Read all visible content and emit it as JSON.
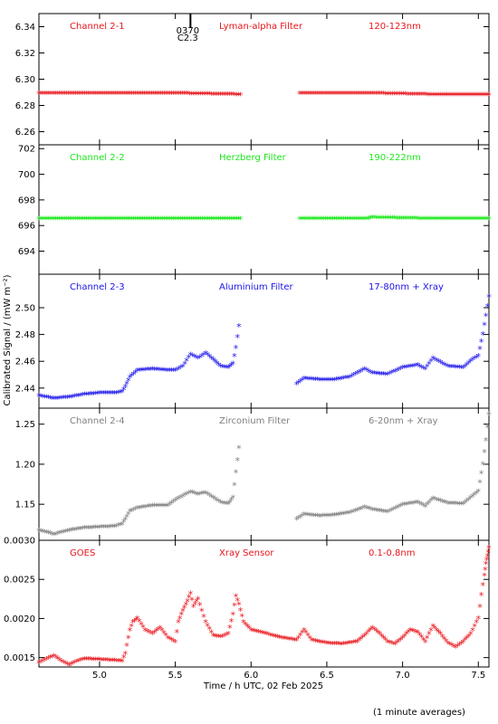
{
  "chart_data": {
    "type": "scatter",
    "xlabel": "Time / h UTC, 02 Feb 2025",
    "ylabel": "Calibrated Signal / (mW m⁻²)",
    "xlim": [
      4.6,
      7.57
    ],
    "xticks": [
      5.0,
      5.5,
      6.0,
      6.5,
      7.0,
      7.5
    ],
    "xtick_labels": [
      "5.0",
      "5.5",
      "6.0",
      "6.5",
      "7.0",
      "7.5"
    ],
    "marker": "asterisk",
    "data_gap": [
      5.93,
      6.32
    ],
    "flare_marker": {
      "x": 5.6,
      "label_top": "0370",
      "label_bottom": "C2.3"
    },
    "footnote": "(1 minute averages)",
    "panels": [
      {
        "channel": "Channel 2-1",
        "filter": "Lyman-alpha Filter",
        "band": "120-123nm",
        "color": "#e8141b",
        "ylim": [
          6.25,
          6.35
        ],
        "yticks": [
          "6.26",
          "6.28",
          "6.30",
          "6.32",
          "6.34"
        ],
        "series": [
          {
            "x": [
              4.6,
              5.0,
              5.5,
              5.93
            ],
            "y": [
              6.289,
              6.289,
              6.289,
              6.288
            ]
          },
          {
            "x": [
              6.32,
              6.8,
              7.2,
              7.57
            ],
            "y": [
              6.289,
              6.289,
              6.288,
              6.288
            ]
          }
        ]
      },
      {
        "channel": "Channel 2-2",
        "filter": "Herzberg Filter",
        "band": "190-222nm",
        "color": "#1be81b",
        "ylim": [
          692.2,
          702.3
        ],
        "yticks": [
          "694",
          "696",
          "698",
          "700",
          "702"
        ],
        "series": [
          {
            "x": [
              4.6,
              5.0,
              5.5,
              5.93
            ],
            "y": [
              696.5,
              696.5,
              696.5,
              696.5
            ]
          },
          {
            "x": [
              6.32,
              6.77,
              6.8,
              7.2,
              7.57
            ],
            "y": [
              696.5,
              696.5,
              696.6,
              696.5,
              696.5
            ]
          }
        ]
      },
      {
        "channel": "Channel 2-3",
        "filter": "Aluminium Filter",
        "band": "17-80nm + Xray",
        "color": "#1b14e8",
        "ylim": [
          2.425,
          2.525
        ],
        "yticks": [
          "2.44",
          "2.46",
          "2.48",
          "2.50"
        ],
        "series": [
          {
            "x": [
              4.6,
              4.7,
              4.8,
              4.9,
              5.0,
              5.1,
              5.15,
              5.17,
              5.2,
              5.25,
              5.35,
              5.45,
              5.5,
              5.55,
              5.6,
              5.65,
              5.7,
              5.8,
              5.85,
              5.88,
              5.9,
              5.92
            ],
            "y": [
              2.434,
              2.432,
              2.433,
              2.435,
              2.436,
              2.436,
              2.437,
              2.441,
              2.448,
              2.453,
              2.454,
              2.453,
              2.453,
              2.456,
              2.465,
              2.462,
              2.466,
              2.456,
              2.455,
              2.458,
              2.47,
              2.486
            ]
          },
          {
            "x": [
              6.3,
              6.35,
              6.45,
              6.55,
              6.65,
              6.75,
              6.8,
              6.9,
              7.0,
              7.1,
              7.15,
              7.2,
              7.3,
              7.4,
              7.45,
              7.5,
              7.53,
              7.55,
              7.57
            ],
            "y": [
              2.443,
              2.447,
              2.446,
              2.446,
              2.448,
              2.454,
              2.451,
              2.45,
              2.455,
              2.457,
              2.454,
              2.462,
              2.456,
              2.455,
              2.46,
              2.464,
              2.48,
              2.494,
              2.508
            ]
          }
        ]
      },
      {
        "channel": "Channel 2-4",
        "filter": "Zirconium Filter",
        "band": "6-20nm + Xray",
        "color": "#808080",
        "ylim": [
          1.105,
          1.27
        ],
        "yticks": [
          "1.15",
          "1.20",
          "1.25"
        ],
        "series": [
          {
            "x": [
              4.6,
              4.7,
              4.8,
              4.9,
              5.0,
              5.1,
              5.15,
              5.17,
              5.2,
              5.25,
              5.35,
              5.45,
              5.5,
              5.55,
              5.6,
              5.65,
              5.7,
              5.8,
              5.85,
              5.88,
              5.9,
              5.92
            ],
            "y": [
              1.117,
              1.112,
              1.117,
              1.12,
              1.121,
              1.122,
              1.125,
              1.131,
              1.141,
              1.145,
              1.148,
              1.148,
              1.155,
              1.16,
              1.165,
              1.162,
              1.164,
              1.152,
              1.15,
              1.158,
              1.19,
              1.22
            ]
          },
          {
            "x": [
              6.3,
              6.35,
              6.45,
              6.55,
              6.65,
              6.75,
              6.8,
              6.9,
              7.0,
              7.1,
              7.15,
              7.2,
              7.3,
              7.4,
              7.45,
              7.5,
              7.53,
              7.55,
              7.57
            ],
            "y": [
              1.131,
              1.137,
              1.135,
              1.136,
              1.139,
              1.146,
              1.143,
              1.14,
              1.149,
              1.152,
              1.147,
              1.157,
              1.151,
              1.15,
              1.158,
              1.166,
              1.2,
              1.23,
              1.262
            ]
          }
        ]
      },
      {
        "channel": "GOES",
        "filter": "Xray Sensor",
        "band": "0.1-0.8nm",
        "color": "#e8141b",
        "ylim": [
          0.00138,
          0.003
        ],
        "yticks": [
          "0.0015",
          "0.0020",
          "0.0025",
          "0.0030"
        ],
        "series": [
          {
            "x": [
              4.6,
              4.65,
              4.7,
              4.75,
              4.8,
              4.85,
              4.9,
              5.0,
              5.1,
              5.15,
              5.17,
              5.2,
              5.22,
              5.25,
              5.3,
              5.35,
              5.4,
              5.45,
              5.5,
              5.52,
              5.55,
              5.58,
              5.6,
              5.62,
              5.65,
              5.7,
              5.75,
              5.8,
              5.85,
              5.88,
              5.9,
              5.92,
              5.95,
              6.0,
              6.1,
              6.2,
              6.3,
              6.35,
              6.4,
              6.5,
              6.6,
              6.7,
              6.75,
              6.8,
              6.85,
              6.9,
              6.95,
              7.0,
              7.05,
              7.1,
              7.15,
              7.2,
              7.25,
              7.3,
              7.35,
              7.4,
              7.45,
              7.5,
              7.52,
              7.54,
              7.55,
              7.56,
              7.57
            ],
            "y": [
              0.00143,
              0.00148,
              0.00152,
              0.00145,
              0.0014,
              0.00145,
              0.00148,
              0.00147,
              0.00146,
              0.00145,
              0.00155,
              0.00185,
              0.00195,
              0.002,
              0.00185,
              0.0018,
              0.00188,
              0.00175,
              0.0017,
              0.00195,
              0.0021,
              0.00222,
              0.00232,
              0.00215,
              0.00225,
              0.00195,
              0.00178,
              0.00176,
              0.0018,
              0.00205,
              0.00228,
              0.00218,
              0.00195,
              0.00185,
              0.0018,
              0.00175,
              0.00172,
              0.00185,
              0.00172,
              0.00168,
              0.00167,
              0.0017,
              0.00178,
              0.00188,
              0.0018,
              0.0017,
              0.00167,
              0.00175,
              0.00185,
              0.00182,
              0.0017,
              0.0019,
              0.0018,
              0.00168,
              0.00163,
              0.0017,
              0.0018,
              0.002,
              0.0023,
              0.00255,
              0.0027,
              0.0028,
              0.0029
            ]
          }
        ]
      }
    ]
  }
}
